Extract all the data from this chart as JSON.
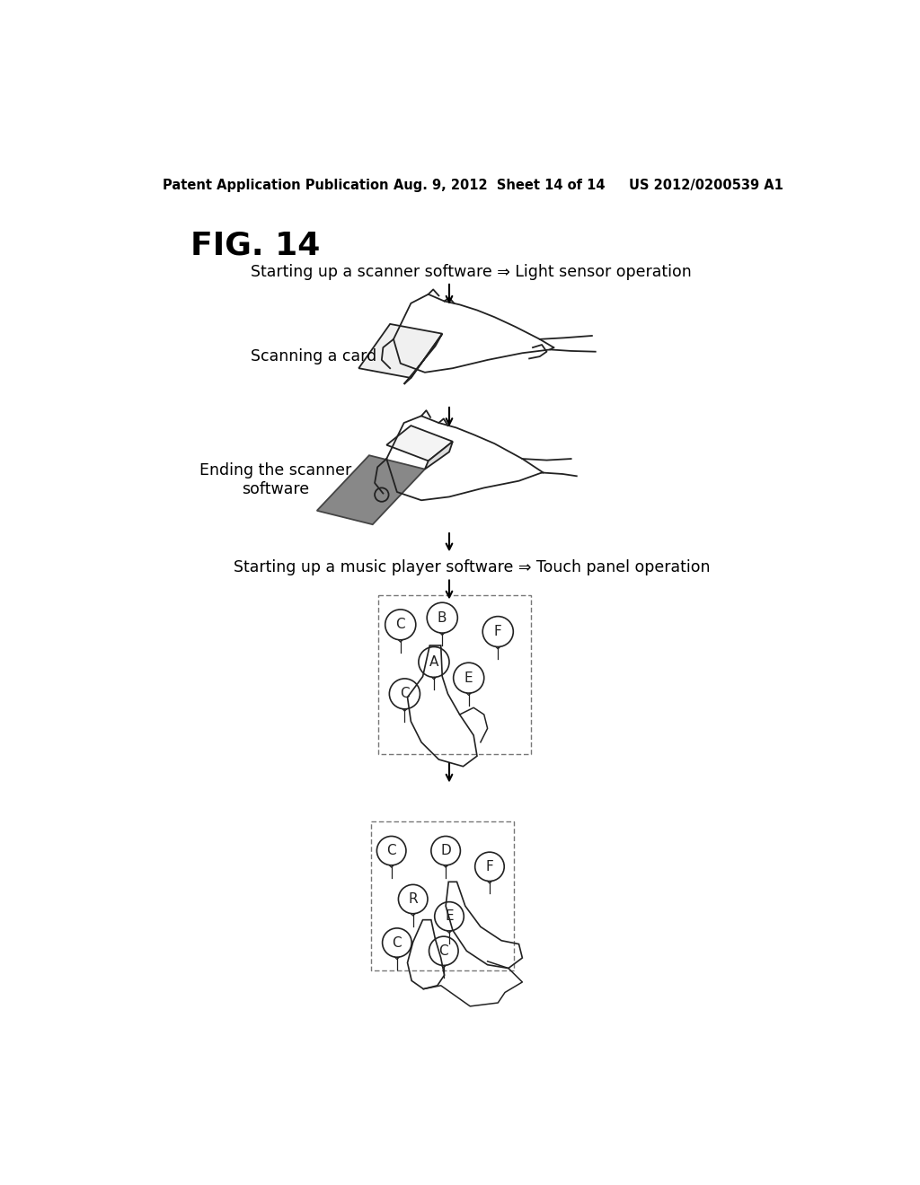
{
  "background_color": "#ffffff",
  "header_left": "Patent Application Publication",
  "header_center": "Aug. 9, 2012  Sheet 14 of 14",
  "header_right": "US 2012/0200539 A1",
  "fig_label": "FIG. 14",
  "step1_text": "Starting up a scanner software ⇒ Light sensor operation",
  "step2_label": "Scanning a card",
  "step3_label": "Ending the scanner\nsoftware",
  "step4_text": "Starting up a music player software ⇒ Touch panel operation",
  "text_color": "#000000",
  "header_fontsize": 10.5,
  "fig_label_fontsize": 26,
  "step_text_fontsize": 12.5,
  "label_fontsize": 12.5,
  "arrow_lw": 1.5,
  "sketch_color": "#222222",
  "dark_card_color": "#888888"
}
